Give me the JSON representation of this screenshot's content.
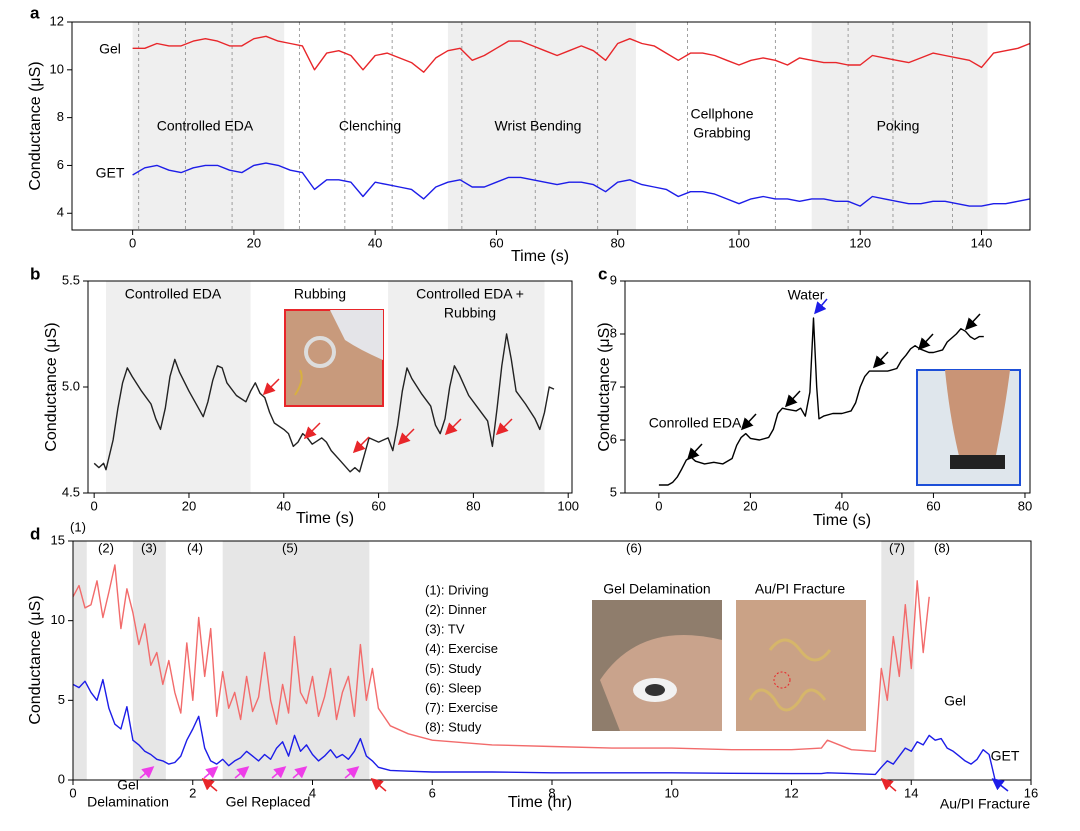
{
  "chart_data": [
    {
      "type": "line",
      "panel_label": "a",
      "xlabel": "Time (s)",
      "ylabel": "Conductance (μS)",
      "xlim": [
        -10,
        148
      ],
      "ylim": [
        3.3,
        12
      ],
      "xticks": [
        0,
        20,
        40,
        60,
        80,
        100,
        120,
        140
      ],
      "yticks": [
        4,
        6,
        8,
        10,
        12
      ],
      "shade_color": "#efefef",
      "shaded_regions": [
        [
          0,
          25
        ],
        [
          52,
          83
        ],
        [
          112,
          141
        ]
      ],
      "event_lines": [
        1,
        8.7,
        16.4,
        27.5,
        35,
        42.8,
        54.3,
        66.4,
        76.7,
        91.5,
        106,
        118,
        125.4,
        135.2
      ],
      "annotations": [
        {
          "text": "Controlled EDA",
          "color": "#000000"
        },
        {
          "text": "Clenching",
          "color": "#000000"
        },
        {
          "text": "Wrist Bending",
          "color": "#000000"
        },
        {
          "text": "Cellphone",
          "color": "#000000"
        },
        {
          "text": "Grabbing",
          "color": "#000000"
        },
        {
          "text": "Poking",
          "color": "#000000"
        }
      ],
      "x": [
        0,
        2,
        4,
        6,
        8,
        10,
        12,
        14,
        16,
        18,
        20,
        22,
        24,
        26,
        28,
        30,
        32,
        34,
        36,
        38,
        40,
        42,
        44,
        46,
        48,
        50,
        52,
        54,
        56,
        58,
        60,
        62,
        64,
        66,
        68,
        70,
        72,
        74,
        76,
        78,
        80,
        82,
        84,
        86,
        88,
        90,
        92,
        94,
        96,
        98,
        100,
        102,
        104,
        106,
        108,
        110,
        112,
        114,
        116,
        118,
        120,
        122,
        124,
        126,
        128,
        130,
        132,
        134,
        136,
        138,
        140,
        142,
        144,
        146,
        148
      ],
      "series": [
        {
          "name": "Gel",
          "color": "#e8262a",
          "values": [
            10.9,
            10.9,
            11.1,
            11.0,
            11.0,
            11.2,
            11.3,
            11.2,
            11.0,
            11.0,
            11.3,
            11.4,
            11.2,
            11.1,
            11.0,
            10.0,
            10.7,
            10.8,
            10.6,
            10.0,
            10.6,
            10.7,
            10.5,
            10.3,
            9.9,
            10.5,
            10.8,
            10.9,
            10.4,
            10.6,
            10.9,
            11.2,
            11.2,
            11.0,
            10.8,
            10.6,
            10.8,
            11.0,
            10.8,
            10.4,
            11.1,
            11.3,
            11.1,
            11.0,
            10.7,
            10.4,
            10.7,
            10.7,
            10.6,
            10.4,
            10.2,
            10.4,
            10.5,
            10.4,
            10.2,
            10.5,
            10.4,
            10.3,
            10.3,
            10.2,
            10.2,
            10.6,
            10.5,
            10.4,
            10.3,
            10.5,
            10.7,
            10.6,
            10.5,
            10.4,
            10.1,
            10.7,
            10.8,
            10.9,
            11.1
          ]
        },
        {
          "name": "GET",
          "color": "#1d1de8",
          "values": [
            5.6,
            5.9,
            6.0,
            5.8,
            5.7,
            5.9,
            6.0,
            6.0,
            5.8,
            5.7,
            6.0,
            6.1,
            6.0,
            5.8,
            5.7,
            5.0,
            5.4,
            5.4,
            5.3,
            4.7,
            5.3,
            5.2,
            5.1,
            5.0,
            4.6,
            5.1,
            5.3,
            5.4,
            5.1,
            5.1,
            5.3,
            5.5,
            5.5,
            5.4,
            5.3,
            5.2,
            5.3,
            5.3,
            5.2,
            4.9,
            5.3,
            5.4,
            5.2,
            5.1,
            5.0,
            4.7,
            4.9,
            4.9,
            4.8,
            4.6,
            4.4,
            4.6,
            4.7,
            4.6,
            4.6,
            4.5,
            4.6,
            4.6,
            4.5,
            4.5,
            4.3,
            4.7,
            4.6,
            4.5,
            4.4,
            4.4,
            4.5,
            4.5,
            4.4,
            4.3,
            4.3,
            4.4,
            4.4,
            4.5,
            4.6
          ]
        }
      ]
    },
    {
      "type": "line",
      "panel_label": "b",
      "xlabel": "Time (s)",
      "ylabel": "Conductance (μS)",
      "xlim": [
        -1.3,
        100.8
      ],
      "ylim": [
        4.5,
        5.5
      ],
      "xticks": [
        0,
        20,
        40,
        60,
        80,
        100
      ],
      "yticks": [
        4.5,
        {
          "value": 5,
          "label": "5.0"
        },
        5.5
      ],
      "shade_color": "#efefef",
      "shaded_regions": [
        [
          2.5,
          33
        ],
        [
          62,
          95
        ]
      ],
      "annotations": [
        {
          "text": "Controlled EDA",
          "color": "#000000"
        },
        {
          "text": "Rubbing",
          "color": "#e8262a"
        },
        {
          "text": "Controlled EDA +",
          "color": "#000000"
        },
        {
          "text": "Rubbing",
          "color": "#e8262a"
        }
      ],
      "x": [
        0,
        1,
        2,
        2.5,
        4,
        5,
        6,
        7,
        8,
        10,
        12,
        13,
        14,
        15,
        16,
        17,
        18,
        20,
        22,
        23,
        24,
        25,
        26,
        27,
        28,
        30,
        32,
        33,
        34,
        35,
        36,
        37,
        38,
        40,
        41,
        42,
        43,
        44,
        45,
        46,
        48,
        49,
        50,
        52,
        54,
        55,
        56,
        57,
        58,
        60,
        62,
        63,
        64,
        65,
        66,
        67,
        69,
        71,
        72,
        73,
        74,
        75,
        76,
        77,
        79,
        81,
        83,
        84,
        85,
        86,
        87,
        88,
        89,
        91,
        93,
        94,
        95,
        96,
        97
      ],
      "series": [
        {
          "color": "#222222",
          "values": [
            4.64,
            4.62,
            4.64,
            4.61,
            4.75,
            4.9,
            5.02,
            5.09,
            5.05,
            4.98,
            4.92,
            4.85,
            4.8,
            4.9,
            5.05,
            5.13,
            5.07,
            4.98,
            4.9,
            4.86,
            4.93,
            5.03,
            5.1,
            5.09,
            5.02,
            4.96,
            4.93,
            4.98,
            5.02,
            4.97,
            4.95,
            4.88,
            4.83,
            4.8,
            4.78,
            4.72,
            4.74,
            4.78,
            4.76,
            4.73,
            4.76,
            4.74,
            4.7,
            4.65,
            4.6,
            4.62,
            4.6,
            4.68,
            4.76,
            4.74,
            4.76,
            4.7,
            4.82,
            4.98,
            5.09,
            5.04,
            4.97,
            4.91,
            4.82,
            4.78,
            4.85,
            5.0,
            5.1,
            5.06,
            4.96,
            4.9,
            4.84,
            4.72,
            4.9,
            5.1,
            5.25,
            5.13,
            4.98,
            4.92,
            4.85,
            4.8,
            4.88,
            5.0,
            4.99
          ]
        }
      ]
    },
    {
      "type": "line",
      "panel_label": "c",
      "xlabel": "Time (s)",
      "ylabel": "Conductance (μS)",
      "xlim": [
        -7.4,
        81.1
      ],
      "ylim": [
        5,
        9
      ],
      "xticks": [
        0,
        20,
        40,
        60,
        80
      ],
      "yticks": [
        5,
        6,
        7,
        8,
        9
      ],
      "annotations": [
        {
          "text": "Conrolled EDA",
          "color": "#000000"
        },
        {
          "text": "Water",
          "color": "#1d1de8"
        }
      ],
      "x": [
        0,
        2,
        3,
        4,
        5,
        6,
        7,
        8,
        10,
        12,
        14,
        16,
        17,
        18,
        19,
        20,
        22,
        24,
        25,
        26,
        27,
        28,
        30,
        31,
        32,
        33,
        33.8,
        34.5,
        35,
        36,
        38,
        40,
        42,
        43,
        44,
        45,
        46,
        48,
        50,
        52,
        53,
        54,
        55,
        56,
        57,
        59,
        60,
        62,
        63,
        65,
        66,
        67,
        68,
        69,
        70,
        71
      ],
      "series": [
        {
          "color": "#000000",
          "values": [
            5.15,
            5.15,
            5.2,
            5.3,
            5.45,
            5.62,
            5.68,
            5.6,
            5.55,
            5.58,
            5.55,
            5.65,
            5.9,
            6.05,
            6.12,
            6.03,
            6.0,
            6.05,
            6.2,
            6.5,
            6.6,
            6.58,
            6.55,
            6.6,
            6.45,
            6.9,
            8.3,
            7.0,
            6.4,
            6.45,
            6.5,
            6.5,
            6.55,
            6.7,
            7.0,
            7.2,
            7.3,
            7.3,
            7.3,
            7.35,
            7.5,
            7.6,
            7.72,
            7.78,
            7.72,
            7.65,
            7.65,
            7.7,
            7.85,
            8.0,
            8.1,
            8.05,
            7.95,
            7.9,
            7.95,
            7.95
          ]
        }
      ]
    },
    {
      "type": "line",
      "panel_label": "d",
      "xlabel": "Time (hr)",
      "ylabel": "Conductance (μS)",
      "xlim": [
        0,
        16
      ],
      "ylim": [
        0,
        15
      ],
      "xticks": [
        0,
        2,
        4,
        6,
        8,
        10,
        12,
        14,
        16
      ],
      "yticks": [
        0,
        5,
        10,
        15
      ],
      "shade_color": "#e6e6e6",
      "shaded_regions": [
        [
          0,
          0.23
        ],
        [
          1.0,
          1.55
        ],
        [
          2.5,
          4.95
        ],
        [
          13.5,
          14.05
        ]
      ],
      "region_labels": [
        "(1)",
        "(2)",
        "(3)",
        "(4)",
        "(5)",
        "(6)",
        "(7)",
        "(8)"
      ],
      "region_names": [
        "(1): Driving",
        "(2): Dinner",
        "(3): TV",
        "(4): Exercise",
        "(5): Study",
        "(6): Sleep",
        "(7): Exercise",
        "(8): Study"
      ],
      "insets": [
        {
          "title": "Gel Delamination",
          "color": "#ee3ee8"
        },
        {
          "title": "Au/PI Fracture",
          "color": "#1d1de8"
        }
      ],
      "annotations": [
        {
          "text": "Gel",
          "color": "#ee3ee8"
        },
        {
          "text": "Delamination",
          "color": "#ee3ee8"
        },
        {
          "text": "Gel Replaced",
          "color": "#e8262a"
        },
        {
          "text": "Au/PI Fracture",
          "color": "#1d1de8"
        }
      ],
      "x": [
        0,
        0.1,
        0.2,
        0.3,
        0.4,
        0.5,
        0.6,
        0.7,
        0.8,
        0.9,
        1.0,
        1.1,
        1.2,
        1.3,
        1.4,
        1.5,
        1.6,
        1.7,
        1.8,
        1.9,
        2.0,
        2.1,
        2.2,
        2.3,
        2.4,
        2.5,
        2.6,
        2.7,
        2.8,
        2.9,
        3.0,
        3.1,
        3.2,
        3.3,
        3.4,
        3.5,
        3.6,
        3.7,
        3.8,
        3.9,
        4.0,
        4.1,
        4.2,
        4.3,
        4.4,
        4.5,
        4.6,
        4.7,
        4.8,
        4.9,
        5.0,
        5.1,
        5.3,
        5.6,
        6,
        7,
        8,
        9,
        10,
        11,
        12,
        12.5,
        12.6,
        13,
        13.4,
        13.5,
        13.6,
        13.7,
        13.8,
        13.9,
        14.0,
        14.1,
        14.2,
        14.3,
        14.4,
        14.5,
        14.6,
        14.7,
        14.8,
        14.9,
        15.0,
        15.1,
        15.2,
        15.3,
        15.4
      ],
      "series": [
        {
          "name": "Gel",
          "color": "#f26b6b",
          "values": [
            11.5,
            12.2,
            10.8,
            11.0,
            12.5,
            10.2,
            11.8,
            13.5,
            9.5,
            12.0,
            10.5,
            8.5,
            9.8,
            7.2,
            8.0,
            6.0,
            7.5,
            5.5,
            4.2,
            8.6,
            5.0,
            10.2,
            6.5,
            9.5,
            4.0,
            6.8,
            4.5,
            5.5,
            3.8,
            6.5,
            4.3,
            5.2,
            8.0,
            5.0,
            3.5,
            6.0,
            4.2,
            9.0,
            5.5,
            4.8,
            6.5,
            4.0,
            5.2,
            7.0,
            3.8,
            5.5,
            6.5,
            4.0,
            8.5,
            5.0,
            7.0,
            4.5,
            3.4,
            2.9,
            2.5,
            2.2,
            2.1,
            2.0,
            2.0,
            1.9,
            1.9,
            2.0,
            2.5,
            1.9,
            1.8,
            7.0,
            5.0,
            9.0,
            6.5,
            11.0,
            7.0,
            12.5,
            8.0,
            11.5,
            null,
            null,
            null,
            null,
            null,
            null,
            null,
            null,
            null,
            null,
            null
          ]
        },
        {
          "name": "GET",
          "color": "#1d1de8",
          "values": [
            6.0,
            5.8,
            6.2,
            5.5,
            5.0,
            6.3,
            4.5,
            3.5,
            3.2,
            4.6,
            2.5,
            2.2,
            1.8,
            1.6,
            1.3,
            1.2,
            1.0,
            1.1,
            1.5,
            2.5,
            3.2,
            4.0,
            2.0,
            1.2,
            1.0,
            1.3,
            0.9,
            1.2,
            1.4,
            1.8,
            1.5,
            1.2,
            1.6,
            1.3,
            2.0,
            2.4,
            1.5,
            2.8,
            1.8,
            2.2,
            1.6,
            1.2,
            1.5,
            1.9,
            1.4,
            1.6,
            1.3,
            1.8,
            2.6,
            1.5,
            1.2,
            0.8,
            0.6,
            0.55,
            0.5,
            0.5,
            0.45,
            0.45,
            0.45,
            0.42,
            0.4,
            0.4,
            0.45,
            0.4,
            0.35,
            0.8,
            1.2,
            1.0,
            1.5,
            2.0,
            1.8,
            2.4,
            2.2,
            2.8,
            2.5,
            2.6,
            2.0,
            1.8,
            1.5,
            1.2,
            1.0,
            1.3,
            1.9,
            1.6,
            0.0
          ]
        }
      ]
    }
  ]
}
